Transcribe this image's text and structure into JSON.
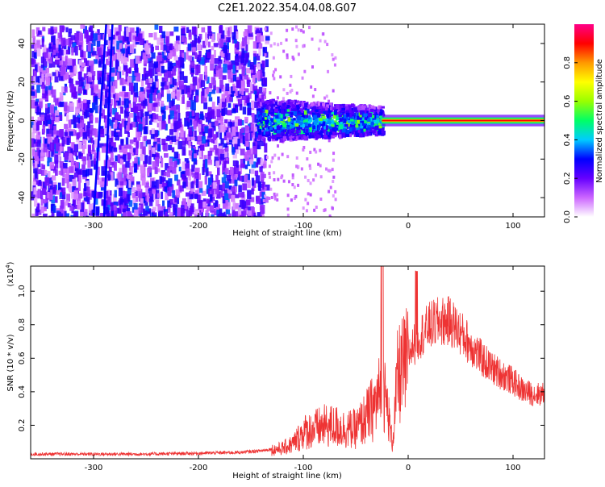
{
  "title": "C2E1.2022.354.04.08.G07",
  "chart_data": [
    {
      "type": "heatmap",
      "xlabel": "Height of straight line (km)",
      "ylabel": "Frequency (Hz)",
      "xlim": [
        -360,
        130
      ],
      "ylim": [
        -50,
        50
      ],
      "xticks": [
        -300,
        -200,
        -100,
        0,
        100
      ],
      "yticks": [
        -40,
        -20,
        0,
        20,
        40
      ],
      "colorbar": {
        "label": "Normalized spectral amplitude",
        "range": [
          0,
          1
        ],
        "ticks": [
          "0.0",
          "0.2",
          "0.4",
          "0.6",
          "0.8"
        ],
        "ticks_values": [
          0,
          0.2,
          0.4,
          0.6,
          0.8
        ],
        "colors": [
          "#ffffff",
          "#cc66ff",
          "#6600ff",
          "#0000ff",
          "#00ccff",
          "#00ff66",
          "#99ff00",
          "#ffff00",
          "#ff9900",
          "#ff0000",
          "#ff0088"
        ]
      },
      "regions": {
        "noise_x_range": [
          -360,
          -140
        ],
        "transition_x_range": [
          -145,
          -25
        ],
        "carrier_x_range": [
          -25,
          130
        ],
        "carrier_frequency": 0
      }
    },
    {
      "type": "line",
      "xlabel": "Height of straight line (km)",
      "ylabel": "SNR (10 * v/v)",
      "y_multiplier_label": "(x10",
      "y_multiplier_exp": "4",
      "y_multiplier_close": ")",
      "xlim": [
        -360,
        130
      ],
      "ylim": [
        0,
        1.15
      ],
      "xticks": [
        -300,
        -200,
        -100,
        0,
        100
      ],
      "yticks": [
        "0.2",
        "0.4",
        "0.6",
        "0.8",
        "1.0"
      ],
      "yticks_values": [
        0.2,
        0.4,
        0.6,
        0.8,
        1.0
      ],
      "series": [
        {
          "color": "#ee3333",
          "points": [
            [
              -360,
              0.03
            ],
            [
              -300,
              0.03
            ],
            [
              -250,
              0.03
            ],
            [
              -200,
              0.035
            ],
            [
              -160,
              0.04
            ],
            [
              -140,
              0.05
            ],
            [
              -120,
              0.07
            ],
            [
              -110,
              0.1
            ],
            [
              -100,
              0.18
            ],
            [
              -90,
              0.2
            ],
            [
              -80,
              0.22
            ],
            [
              -70,
              0.22
            ],
            [
              -60,
              0.2
            ],
            [
              -50,
              0.2
            ],
            [
              -40,
              0.28
            ],
            [
              -30,
              0.38
            ],
            [
              -25,
              0.5
            ],
            [
              -20,
              0.35
            ],
            [
              -15,
              0.1
            ],
            [
              -10,
              0.55
            ],
            [
              0,
              0.65
            ],
            [
              10,
              0.75
            ],
            [
              20,
              0.82
            ],
            [
              30,
              0.85
            ],
            [
              40,
              0.85
            ],
            [
              50,
              0.78
            ],
            [
              60,
              0.7
            ],
            [
              70,
              0.62
            ],
            [
              80,
              0.56
            ],
            [
              90,
              0.52
            ],
            [
              100,
              0.48
            ],
            [
              110,
              0.42
            ],
            [
              120,
              0.4
            ],
            [
              130,
              0.4
            ]
          ]
        }
      ]
    }
  ]
}
